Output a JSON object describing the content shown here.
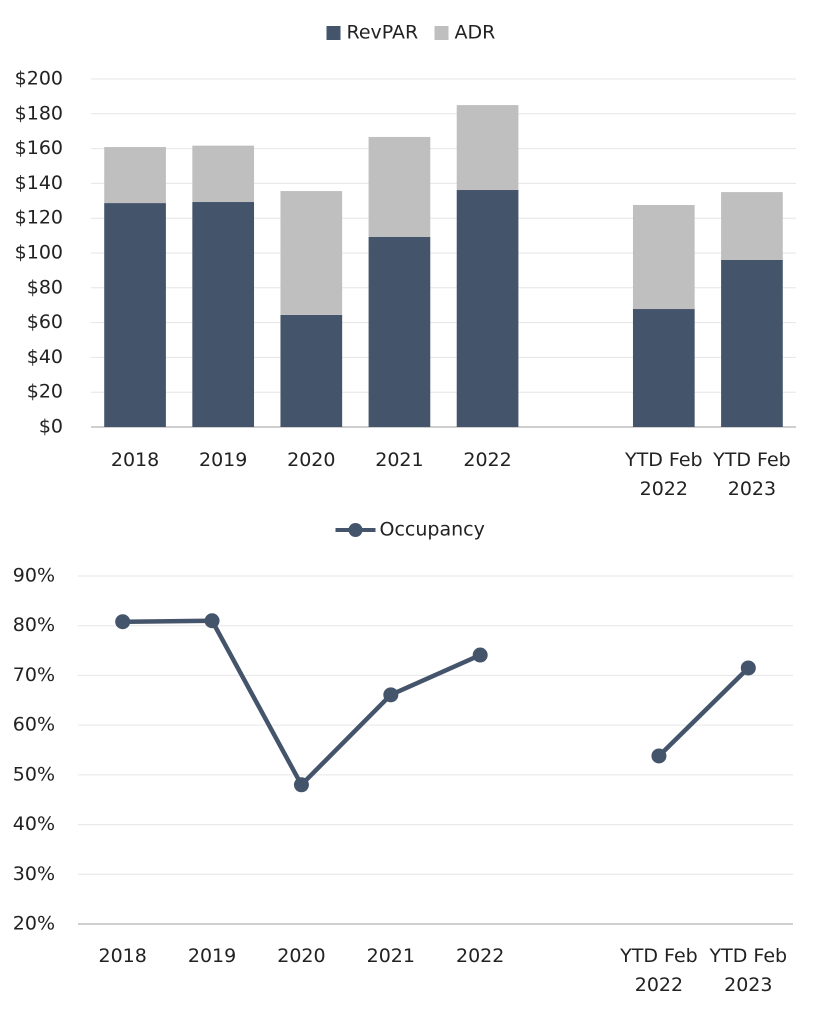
{
  "chart_data": [
    {
      "type": "bar",
      "stacked": true,
      "categories": [
        "2018",
        "2019",
        "2020",
        "2021",
        "2022",
        null,
        "YTD Feb 2022",
        "YTD Feb 2023"
      ],
      "series": [
        {
          "name": "RevPAR",
          "color": "#44546a",
          "values": [
            128.7,
            129.3,
            64.4,
            109.2,
            136.2,
            null,
            67.8,
            96
          ]
        },
        {
          "name": "ADR",
          "color": "#bfbfbf",
          "values": [
            32.2,
            32.4,
            71.2,
            57.5,
            48.8,
            null,
            59.8,
            39
          ]
        }
      ],
      "ylim": [
        0,
        200
      ],
      "yticks": [
        {
          "value": 0,
          "label": "$0"
        },
        {
          "value": 20,
          "label": "$20"
        },
        {
          "value": 40,
          "label": "$40"
        },
        {
          "value": 60,
          "label": "$60"
        },
        {
          "value": 80,
          "label": "$80"
        },
        {
          "value": 100,
          "label": "$100"
        },
        {
          "value": 120,
          "label": "$120"
        },
        {
          "value": 140,
          "label": "$140"
        },
        {
          "value": 160,
          "label": "$160"
        },
        {
          "value": 180,
          "label": "$180"
        },
        {
          "value": 200,
          "label": "$200"
        }
      ],
      "grid": true,
      "legend": "top"
    },
    {
      "type": "line",
      "categories": [
        "2018",
        "2019",
        "2020",
        "2021",
        "2022",
        null,
        "YTD Feb 2022",
        "YTD Feb 2023"
      ],
      "series": [
        {
          "name": "Occupancy",
          "color": "#44546a",
          "values": [
            80.8,
            81,
            48,
            66.1,
            74.1,
            null,
            53.8,
            71.5
          ]
        }
      ],
      "ylim": [
        20,
        90
      ],
      "yticks": [
        {
          "value": 20,
          "label": "20%"
        },
        {
          "value": 30,
          "label": "30%"
        },
        {
          "value": 40,
          "label": "40%"
        },
        {
          "value": 50,
          "label": "50%"
        },
        {
          "value": 60,
          "label": "60%"
        },
        {
          "value": 70,
          "label": "70%"
        },
        {
          "value": 80,
          "label": "80%"
        },
        {
          "value": 90,
          "label": "90%"
        }
      ],
      "grid": true,
      "legend": "top"
    }
  ]
}
